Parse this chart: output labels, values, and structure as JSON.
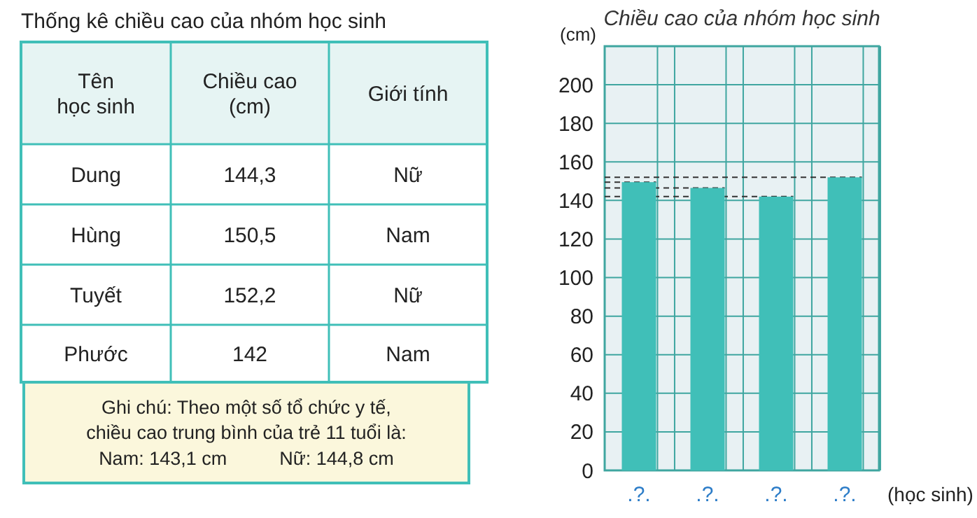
{
  "chart_data": [
    {
      "type": "other",
      "title": "Thống kê chiều cao của nhóm học sinh",
      "annotations": [
        "Tên\nhọc sinh",
        "Chiều cao\n(cm)",
        "Giới tính",
        "Dung",
        "144,3",
        "Nữ",
        "Hùng",
        "150,5",
        "Nam",
        "Tuyết",
        "152,2",
        "Nữ",
        "Phước",
        "142",
        "Nam",
        "Ghi chú: Theo một số tổ chức y tế,\nchiều cao trung bình của trẻ 11 tuổi là:\nNam: 143,1 cm          Nữ: 144,8 cm"
      ]
    },
    {
      "type": "bar",
      "title": "Chiều cao của nhóm học sinh",
      "ylabel": "(cm)",
      "xlabel": "(học sinh)",
      "categories": [
        ".?.",
        ".?.",
        ".?.",
        ".?."
      ],
      "values": [
        149.5,
        146.5,
        142,
        152
      ],
      "color": "#40bfb8",
      "ylim": [
        0,
        220
      ],
      "yticks": [
        0,
        20,
        40,
        60,
        80,
        100,
        120,
        140,
        160,
        180,
        200
      ],
      "grid": true,
      "ref_lines": [
        {
          "axis": "y",
          "value": 152,
          "line_style": "dashed",
          "color": "#333333"
        },
        {
          "axis": "y",
          "value": 149.5,
          "line_style": "dashed",
          "color": "#333333"
        },
        {
          "axis": "y",
          "value": 146.5,
          "line_style": "dashed",
          "color": "#333333"
        },
        {
          "axis": "y",
          "value": 142,
          "line_style": "dashed",
          "color": "#333333"
        }
      ]
    }
  ]
}
